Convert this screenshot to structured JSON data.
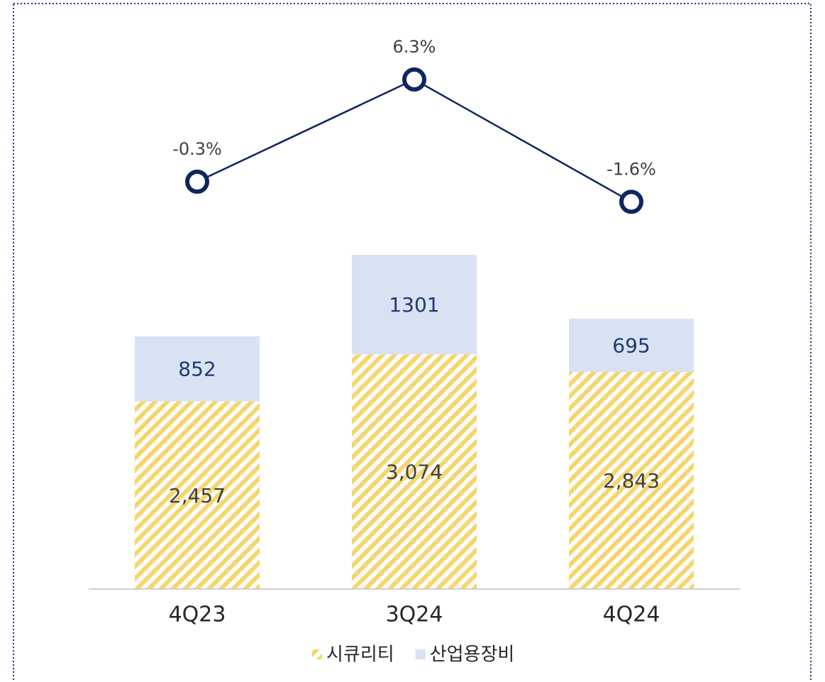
{
  "chart_data": {
    "type": "bar",
    "stacked": true,
    "categories": [
      "4Q23",
      "3Q24",
      "4Q24"
    ],
    "ylim": [
      0,
      7340
    ],
    "y2lim": [
      -26.6,
      9.6
    ],
    "series": [
      {
        "name": "시큐리티",
        "color": "#f6d56c",
        "pattern": "hatch",
        "values": [
          2457,
          3074,
          2843
        ],
        "value_labels": [
          "2,457",
          "3,074",
          "2,843"
        ]
      },
      {
        "name": "산업용장비",
        "color": "#d9e2f3",
        "values": [
          852,
          1301,
          695
        ]
      },
      {
        "type": "line",
        "axis": "y2",
        "color": "#0d2660",
        "values": [
          -0.3,
          6.3,
          -1.6
        ],
        "value_labels": [
          "-0.3%",
          "6.3%",
          "-1.6%"
        ]
      }
    ],
    "legend": "bottom"
  }
}
